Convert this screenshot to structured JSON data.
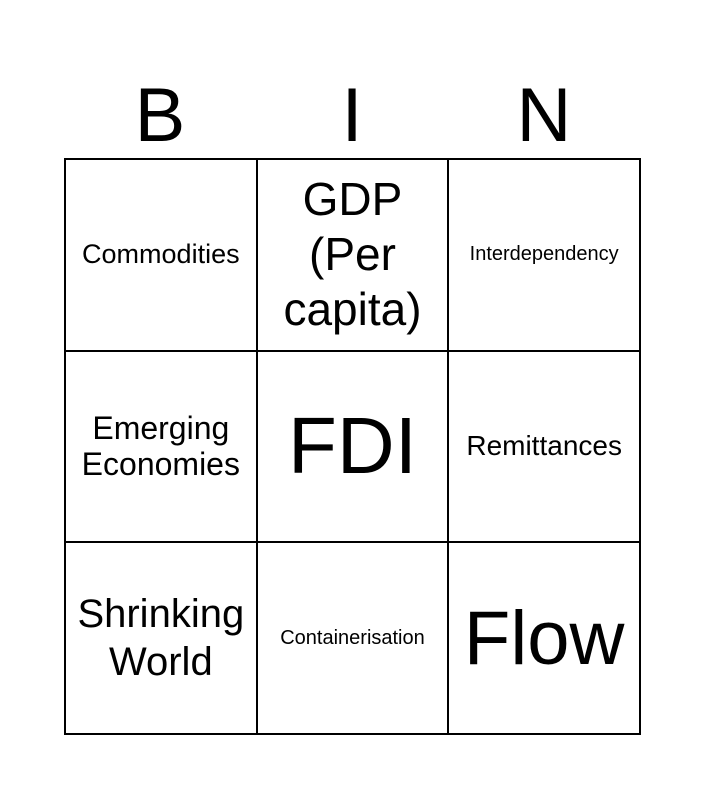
{
  "header": [
    "B",
    "I",
    "N"
  ],
  "cells": [
    {
      "text": "Commodities",
      "size": 27
    },
    {
      "text": "GDP (Per capita)",
      "size": 46
    },
    {
      "text": "Interdependency",
      "size": 20
    },
    {
      "text": "Emerging Economies",
      "size": 32
    },
    {
      "text": "FDI",
      "size": 80
    },
    {
      "text": "Remittances",
      "size": 28
    },
    {
      "text": "Shrinking World",
      "size": 40
    },
    {
      "text": "Containerisation",
      "size": 20
    },
    {
      "text": "Flow",
      "size": 76
    }
  ]
}
